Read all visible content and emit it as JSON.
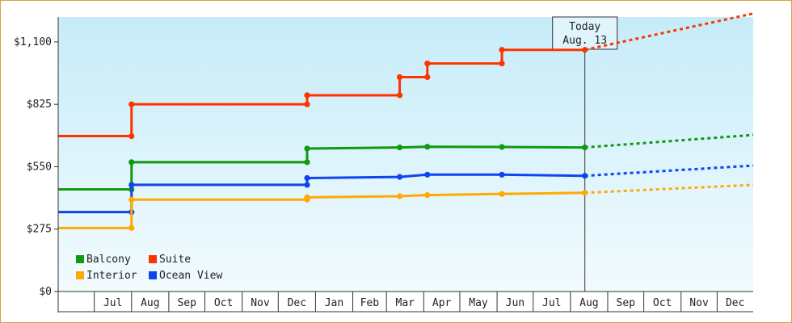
{
  "chart_data": {
    "type": "line",
    "subtype": "step",
    "title": "",
    "xlabel": "",
    "ylabel": "",
    "x_domain": [
      "2013-06-01",
      "2014-12-31"
    ],
    "ylim": [
      0,
      1210
    ],
    "y_ticks": [
      {
        "value": 0,
        "label": "$0"
      },
      {
        "value": 275,
        "label": "$275"
      },
      {
        "value": 550,
        "label": "$550"
      },
      {
        "value": 825,
        "label": "$825"
      },
      {
        "value": 1100,
        "label": "$1,100"
      }
    ],
    "x_ticks": [
      {
        "date": "2013-07-01",
        "label": "Jul"
      },
      {
        "date": "2013-08-01",
        "label": "Aug"
      },
      {
        "date": "2013-09-01",
        "label": "Sep"
      },
      {
        "date": "2013-10-01",
        "label": "Oct"
      },
      {
        "date": "2013-11-01",
        "label": "Nov"
      },
      {
        "date": "2013-12-01",
        "label": "Dec"
      },
      {
        "date": "2014-01-01",
        "label": "Jan"
      },
      {
        "date": "2014-02-01",
        "label": "Feb"
      },
      {
        "date": "2014-03-01",
        "label": "Mar"
      },
      {
        "date": "2014-04-01",
        "label": "Apr"
      },
      {
        "date": "2014-05-01",
        "label": "May"
      },
      {
        "date": "2014-06-01",
        "label": "Jun"
      },
      {
        "date": "2014-07-01",
        "label": "Jul"
      },
      {
        "date": "2014-08-01",
        "label": "Aug"
      },
      {
        "date": "2014-09-01",
        "label": "Sep"
      },
      {
        "date": "2014-10-01",
        "label": "Oct"
      },
      {
        "date": "2014-11-01",
        "label": "Nov"
      },
      {
        "date": "2014-12-01",
        "label": "Dec"
      }
    ],
    "today": {
      "date": "2014-08-13",
      "label_line1": "Today",
      "label_line2": "Aug. 13"
    },
    "legend_position": "bottom-left",
    "grid": false,
    "series": [
      {
        "name": "Suite",
        "color": "#ff3300",
        "points": [
          {
            "date": "2013-06-01",
            "y": 685
          },
          {
            "date": "2013-08-01",
            "y": 685
          },
          {
            "date": "2013-08-01",
            "y": 825
          },
          {
            "date": "2013-12-25",
            "y": 825
          },
          {
            "date": "2013-12-25",
            "y": 865
          },
          {
            "date": "2014-03-12",
            "y": 865
          },
          {
            "date": "2014-03-12",
            "y": 945
          },
          {
            "date": "2014-04-04",
            "y": 945
          },
          {
            "date": "2014-04-04",
            "y": 1005
          },
          {
            "date": "2014-06-05",
            "y": 1005
          },
          {
            "date": "2014-06-05",
            "y": 1065
          },
          {
            "date": "2014-08-13",
            "y": 1065
          }
        ],
        "projection": [
          {
            "date": "2014-08-13",
            "y": 1065
          },
          {
            "date": "2014-12-31",
            "y": 1225
          }
        ]
      },
      {
        "name": "Balcony",
        "color": "#119911",
        "points": [
          {
            "date": "2013-06-01",
            "y": 450
          },
          {
            "date": "2013-08-01",
            "y": 450
          },
          {
            "date": "2013-08-01",
            "y": 570
          },
          {
            "date": "2013-12-25",
            "y": 570
          },
          {
            "date": "2013-12-25",
            "y": 630
          },
          {
            "date": "2014-03-12",
            "y": 635
          },
          {
            "date": "2014-04-04",
            "y": 638
          },
          {
            "date": "2014-06-05",
            "y": 637
          },
          {
            "date": "2014-08-13",
            "y": 635
          }
        ],
        "projection": [
          {
            "date": "2014-08-13",
            "y": 635
          },
          {
            "date": "2014-12-31",
            "y": 690
          }
        ]
      },
      {
        "name": "Ocean View",
        "color": "#1144ee",
        "points": [
          {
            "date": "2013-06-01",
            "y": 350
          },
          {
            "date": "2013-08-01",
            "y": 350
          },
          {
            "date": "2013-08-01",
            "y": 470
          },
          {
            "date": "2013-12-25",
            "y": 470
          },
          {
            "date": "2013-12-25",
            "y": 500
          },
          {
            "date": "2014-03-12",
            "y": 505
          },
          {
            "date": "2014-04-04",
            "y": 515
          },
          {
            "date": "2014-06-05",
            "y": 515
          },
          {
            "date": "2014-08-13",
            "y": 510
          }
        ],
        "projection": [
          {
            "date": "2014-08-13",
            "y": 510
          },
          {
            "date": "2014-12-31",
            "y": 555
          }
        ]
      },
      {
        "name": "Interior",
        "color": "#ffaa00",
        "points": [
          {
            "date": "2013-06-01",
            "y": 280
          },
          {
            "date": "2013-08-01",
            "y": 280
          },
          {
            "date": "2013-08-01",
            "y": 405
          },
          {
            "date": "2013-12-25",
            "y": 405
          },
          {
            "date": "2013-12-25",
            "y": 415
          },
          {
            "date": "2014-03-12",
            "y": 420
          },
          {
            "date": "2014-04-04",
            "y": 425
          },
          {
            "date": "2014-06-05",
            "y": 430
          },
          {
            "date": "2014-08-13",
            "y": 435
          }
        ],
        "projection": [
          {
            "date": "2014-08-13",
            "y": 435
          },
          {
            "date": "2014-12-31",
            "y": 470
          }
        ]
      }
    ],
    "legend": [
      {
        "name": "Balcony",
        "color": "#119911"
      },
      {
        "name": "Suite",
        "color": "#ff3300"
      },
      {
        "name": "Interior",
        "color": "#ffaa00"
      },
      {
        "name": "Ocean View",
        "color": "#1144ee"
      }
    ]
  }
}
